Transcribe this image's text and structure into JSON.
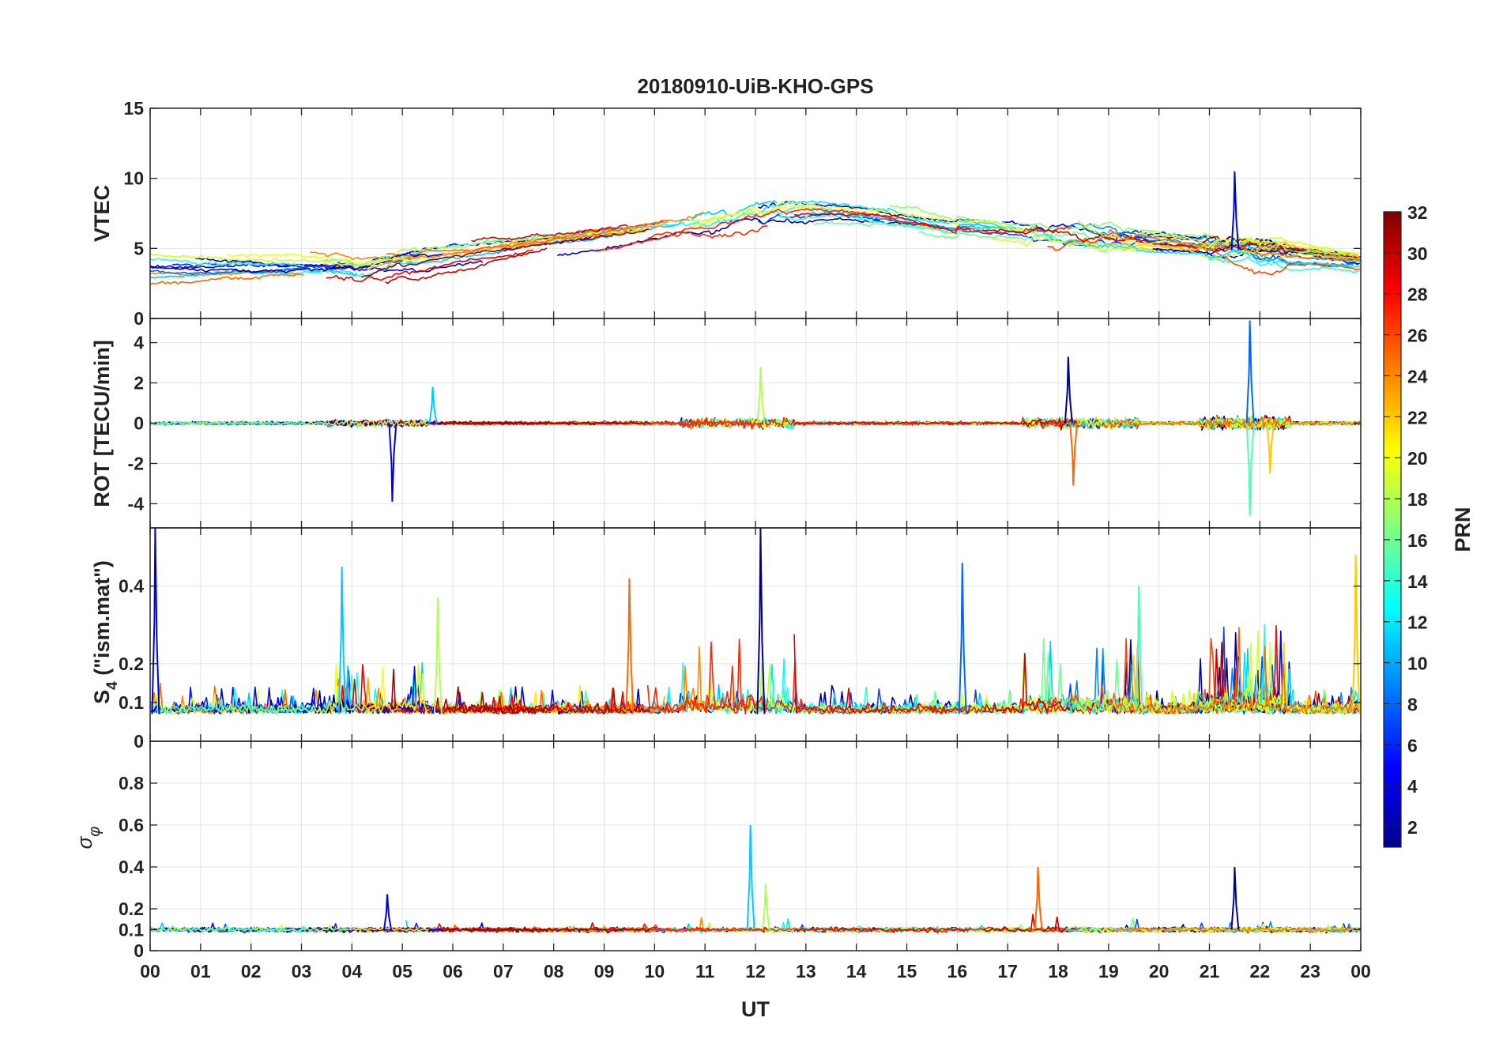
{
  "chart_data": {
    "type": "line",
    "title": "20180910-UiB-KHO-GPS",
    "xlabel": "UT",
    "x_tick_labels": [
      "00",
      "01",
      "02",
      "03",
      "04",
      "05",
      "06",
      "07",
      "08",
      "09",
      "10",
      "11",
      "12",
      "13",
      "14",
      "15",
      "16",
      "17",
      "18",
      "19",
      "20",
      "21",
      "22",
      "23",
      "00"
    ],
    "xlim_hours": [
      0,
      24
    ],
    "grid": true,
    "series_note": "One colored line per GPS satellite PRN, color set by colorbar",
    "colorbar": {
      "label": "PRN",
      "range": [
        1,
        32
      ],
      "ticks": [
        "2",
        "4",
        "6",
        "8",
        "10",
        "12",
        "14",
        "16",
        "18",
        "20",
        "22",
        "24",
        "26",
        "28",
        "30",
        "32"
      ],
      "colormap": [
        "#00008F",
        "#0000FF",
        "#0080FF",
        "#00FFFF",
        "#80FF80",
        "#FFFF00",
        "#FF8000",
        "#FF0000",
        "#800000"
      ]
    },
    "panels": [
      {
        "ylabel": "VTEC",
        "ylim": [
          0,
          15
        ],
        "y_tick_labels": [
          "0",
          "5",
          "10",
          "15"
        ],
        "features": {
          "baseline_00_to_04UT": 3.5,
          "rise_04_to_10UT": [
            3,
            6.5
          ],
          "plateau_10_to_16UT": [
            6.5,
            8
          ],
          "decline_16_to_24UT": [
            7,
            4
          ],
          "max_spike": {
            "hour": 21.5,
            "value": 10.5
          }
        }
      },
      {
        "ylabel": "ROT [TECU/min]",
        "ylim": [
          -5.2,
          5.2
        ],
        "y_tick_labels": [
          "-4",
          "-2",
          "0",
          "2",
          "4"
        ],
        "spikes": [
          {
            "hour": 4.8,
            "value": -3.9
          },
          {
            "hour": 5.6,
            "value": 1.8
          },
          {
            "hour": 12.1,
            "value": 2.8
          },
          {
            "hour": 18.3,
            "value": -3.1
          },
          {
            "hour": 18.2,
            "value": 3.3
          },
          {
            "hour": 21.8,
            "value": 5.1
          },
          {
            "hour": 21.8,
            "value": -4.6
          },
          {
            "hour": 22.2,
            "value": -2.5
          }
        ]
      },
      {
        "ylabel": "S4 (\"ism.mat\")",
        "ylabel_main": "S",
        "ylabel_sub": "4",
        "ylabel_rest": " (\"ism.mat\")",
        "ylim": [
          0,
          0.55
        ],
        "y_tick_labels": [
          "0",
          "0.1",
          "0.2",
          "0.4"
        ],
        "baseline": 0.07,
        "spikes": [
          {
            "hour": 0.1,
            "value": 0.55
          },
          {
            "hour": 3.8,
            "value": 0.45
          },
          {
            "hour": 5.7,
            "value": 0.37
          },
          {
            "hour": 9.5,
            "value": 0.42
          },
          {
            "hour": 12.1,
            "value": 0.55
          },
          {
            "hour": 16.1,
            "value": 0.46
          },
          {
            "hour": 19.6,
            "value": 0.4
          },
          {
            "hour": 23.9,
            "value": 0.48
          }
        ]
      },
      {
        "ylabel": "σφ",
        "ylabel_main": "σ",
        "ylabel_sub": "φ",
        "ylim": [
          0,
          1
        ],
        "y_tick_labels": [
          "0",
          "0.1",
          "0.2",
          "0.4",
          "0.6",
          "0.8"
        ],
        "baseline": 0.1,
        "spikes": [
          {
            "hour": 4.7,
            "value": 0.27
          },
          {
            "hour": 11.9,
            "value": 0.6
          },
          {
            "hour": 12.2,
            "value": 0.32
          },
          {
            "hour": 17.6,
            "value": 0.4
          },
          {
            "hour": 21.5,
            "value": 0.4
          }
        ]
      }
    ]
  }
}
